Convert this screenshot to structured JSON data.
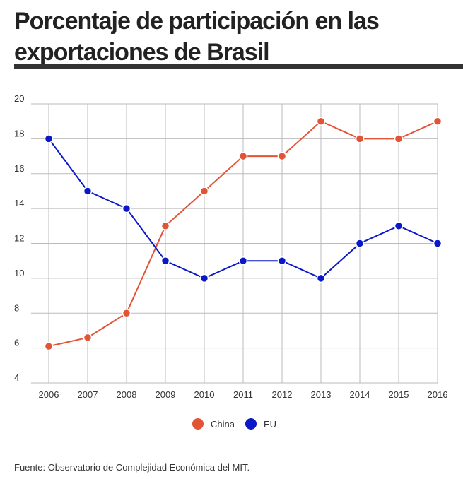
{
  "header": {
    "title": "Porcentaje de participación en las exportaciones de Brasil"
  },
  "source": "Fuente: Observatorio de Complejidad Económica del MIT.",
  "colors": {
    "China": "#e35336",
    "EU": "#0a18c8",
    "grid": "#bbbbbb",
    "rule": "#333333"
  },
  "chart_data": {
    "type": "line",
    "title": "Porcentaje de participación en las exportaciones de Brasil",
    "xlabel": "",
    "ylabel": "",
    "categories": [
      "2006",
      "2007",
      "2008",
      "2009",
      "2010",
      "2011",
      "2012",
      "2013",
      "2014",
      "2015",
      "2016"
    ],
    "ylim": [
      4,
      20
    ],
    "yticks": [
      4,
      6,
      8,
      10,
      12,
      14,
      16,
      18,
      20
    ],
    "grid": true,
    "legend_position": "bottom-center",
    "series": [
      {
        "name": "China",
        "color": "#e35336",
        "values": [
          6.1,
          6.6,
          8,
          13,
          15,
          17,
          17,
          19,
          18,
          18,
          19
        ]
      },
      {
        "name": "EU",
        "color": "#0a18c8",
        "values": [
          18,
          15,
          14,
          11,
          10,
          11,
          11,
          10,
          12,
          13,
          12
        ]
      }
    ]
  }
}
